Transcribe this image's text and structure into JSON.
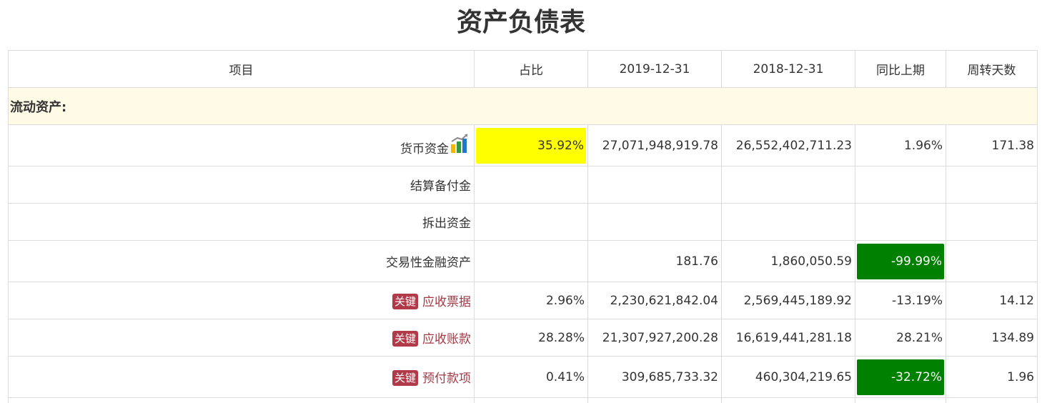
{
  "title": "资产负债表",
  "headers": {
    "item": "项目",
    "ratio": "占比",
    "date1": "2019-12-31",
    "date2": "2018-12-31",
    "yoy": "同比上期",
    "turnover": "周转天数"
  },
  "section_label": "流动资产:",
  "key_tag": "关键",
  "colors": {
    "highlight_yellow": "#ffff00",
    "highlight_green": "#008000",
    "key_tag_bg": "#b13a48",
    "key_text": "#a13a45",
    "section_bg": "#fffbe6"
  },
  "rows": [
    {
      "name": "货币资金",
      "ratio": "35.92%",
      "v2019": "27,071,948,919.78",
      "v2018": "26,552,402,711.23",
      "yoy": "1.96%",
      "turnover": "171.38",
      "icon": "bar-chart-icon"
    },
    {
      "name": "结算备付金",
      "ratio": "",
      "v2019": "",
      "v2018": "",
      "yoy": "",
      "turnover": ""
    },
    {
      "name": "拆出资金",
      "ratio": "",
      "v2019": "",
      "v2018": "",
      "yoy": "",
      "turnover": ""
    },
    {
      "name": "交易性金融资产",
      "ratio": "",
      "v2019": "181.76",
      "v2018": "1,860,050.59",
      "yoy": "-99.99%",
      "turnover": ""
    },
    {
      "name": "应收票据",
      "ratio": "2.96%",
      "v2019": "2,230,621,842.04",
      "v2018": "2,569,445,189.92",
      "yoy": "-13.19%",
      "turnover": "14.12"
    },
    {
      "name": "应收账款",
      "ratio": "28.28%",
      "v2019": "21,307,927,200.28",
      "v2018": "16,619,441,281.18",
      "yoy": "28.21%",
      "turnover": "134.89"
    },
    {
      "name": "预付款项",
      "ratio": "0.41%",
      "v2019": "309,685,733.32",
      "v2018": "460,304,219.65",
      "yoy": "-32.72%",
      "turnover": "1.96"
    }
  ]
}
